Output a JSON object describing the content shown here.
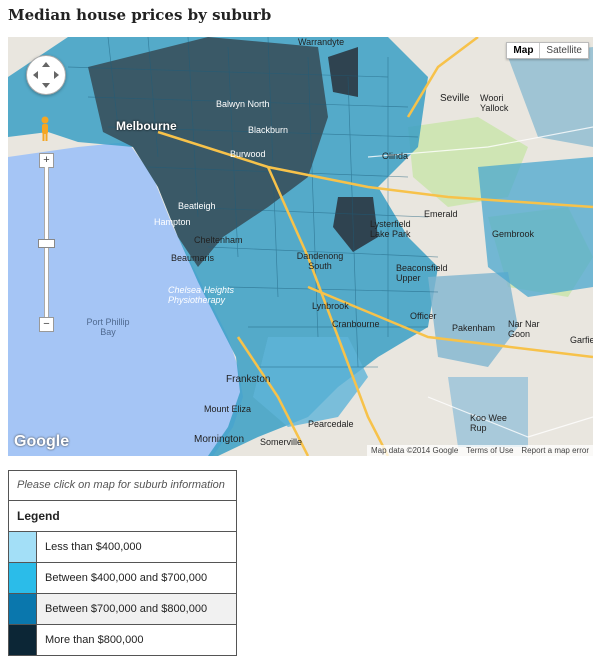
{
  "title": "Median house prices by suburb",
  "map": {
    "type_map": "Map",
    "type_satellite": "Satellite",
    "google": "Google",
    "attribution": "Map data ©2014 Google",
    "terms": "Terms of Use",
    "report": "Report a map error",
    "zoom_in": "+",
    "zoom_out": "−",
    "labels": [
      {
        "t": "Melbourne",
        "c": "dark"
      },
      {
        "t": "Balwyn North",
        "c": "dark"
      },
      {
        "t": "Blackburn",
        "c": "dark"
      },
      {
        "t": "Burwood",
        "c": "dark"
      },
      {
        "t": "Beatleigh",
        "c": "dark"
      },
      {
        "t": "Hampton",
        "c": "dark"
      },
      {
        "t": "Cheltenham",
        "c": "dark"
      },
      {
        "t": "Beaumaris",
        "c": "dark"
      },
      {
        "t": "Dandenong South",
        "c": "dark"
      },
      {
        "t": "Lynbrook",
        "c": "dark"
      },
      {
        "t": "Frankston",
        "c": "dark"
      },
      {
        "t": "Mount Eliza",
        "c": "dark"
      },
      {
        "t": "Mornington",
        "c": "dark"
      },
      {
        "t": "Somerville",
        "c": "dark"
      },
      {
        "t": "Seville",
        "c": "dark"
      },
      {
        "t": "Woori Yallock",
        "c": "dark"
      },
      {
        "t": "Olinda",
        "c": "dark"
      },
      {
        "t": "Emerald",
        "c": "dark"
      },
      {
        "t": "Gembrook",
        "c": "dark"
      },
      {
        "t": "Beaconsfield Upper",
        "c": "dark"
      },
      {
        "t": "Officer",
        "c": "dark"
      },
      {
        "t": "Pakenham",
        "c": "dark"
      },
      {
        "t": "Nar Nar Goon",
        "c": "dark"
      },
      {
        "t": "Garfield",
        "c": "dark"
      },
      {
        "t": "Koo Wee Rup",
        "c": "dark"
      },
      {
        "t": "Pearcedale",
        "c": "dark"
      },
      {
        "t": "Cranbourne",
        "c": "dark"
      },
      {
        "t": "Port Phillip Bay",
        "c": "water"
      },
      {
        "t": "Chelsea Heights Physiotherapy",
        "c": "poi"
      },
      {
        "t": "Lysterfield Lake Park",
        "c": "dark"
      },
      {
        "t": "Warrandyte",
        "c": "dark"
      }
    ]
  },
  "info_text": "Please click on map for suburb information",
  "legend": {
    "title": "Legend",
    "items": [
      {
        "label": "Less than $400,000",
        "color": "#a3dff7"
      },
      {
        "label": "Between $400,000 and $700,000",
        "color": "#2bbce9"
      },
      {
        "label": "Between $700,000 and $800,000",
        "color": "#0a77ad"
      },
      {
        "label": "More than $800,000",
        "color": "#0c2636"
      }
    ]
  },
  "colors": {
    "water": "#a5c5f5",
    "land": "#e9e6df",
    "road": "#f7c24a",
    "mid": "#3a9fc6",
    "dark": "#37505c"
  }
}
